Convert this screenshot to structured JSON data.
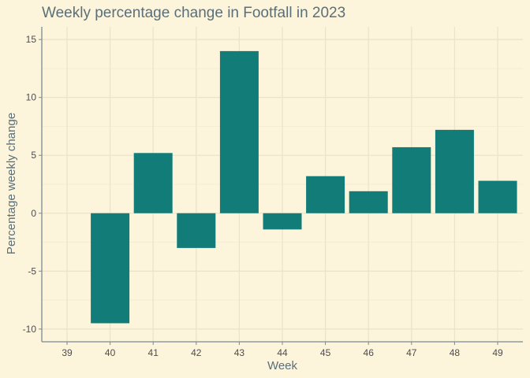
{
  "chart_data": {
    "type": "bar",
    "title": "Weekly percentage change in Footfall in 2023",
    "xlabel": "Week",
    "ylabel": "Percentage weekly change",
    "categories": [
      "39",
      "40",
      "41",
      "42",
      "43",
      "44",
      "45",
      "46",
      "47",
      "48",
      "49"
    ],
    "values": [
      null,
      -9.5,
      5.2,
      -3.0,
      14.0,
      -1.4,
      3.2,
      1.9,
      5.7,
      7.2,
      2.8
    ],
    "ylim": [
      -11.1,
      16.1
    ],
    "yticks": [
      -10,
      -5,
      0,
      5,
      10,
      15
    ],
    "ytick_labels": [
      "-10",
      "-5",
      "0",
      "5",
      "10",
      "15"
    ],
    "grid": true,
    "bar_color": "#117c78",
    "background_color": "#fdf4dc"
  }
}
